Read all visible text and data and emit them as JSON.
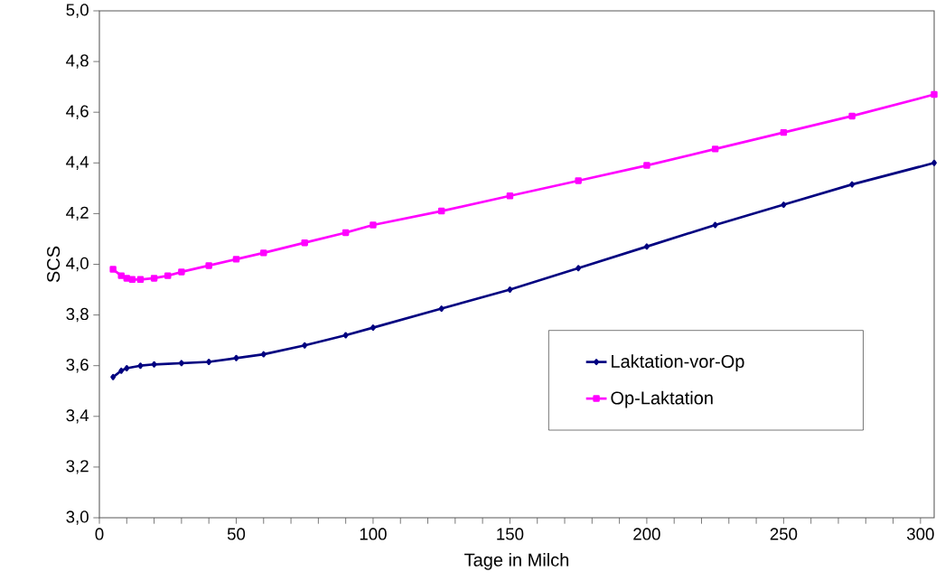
{
  "chart_data": {
    "type": "line",
    "xlabel": "Tage in Milch",
    "ylabel": "SCS",
    "xlim": [
      0,
      305
    ],
    "xticks": [
      0,
      50,
      100,
      150,
      200,
      250,
      300
    ],
    "ylim": [
      3.0,
      5.0
    ],
    "yticks": [
      {
        "value": 3.0,
        "label": "3,0"
      },
      {
        "value": 3.2,
        "label": "3,2"
      },
      {
        "value": 3.4,
        "label": "3,4"
      },
      {
        "value": 3.6,
        "label": "3,6"
      },
      {
        "value": 3.8,
        "label": "3,8"
      },
      {
        "value": 4.0,
        "label": "4,0"
      },
      {
        "value": 4.2,
        "label": "4,2"
      },
      {
        "value": 4.4,
        "label": "4,4"
      },
      {
        "value": 4.6,
        "label": "4,6"
      },
      {
        "value": 4.8,
        "label": "4,8"
      },
      {
        "value": 5.0,
        "label": "5,0"
      }
    ],
    "grid": false,
    "legend": "right",
    "line_style": "solid",
    "series": [
      {
        "name": "Laktation-vor-Op",
        "color": "#000080",
        "marker": "diamond",
        "x": [
          5,
          8,
          10,
          15,
          20,
          30,
          40,
          50,
          60,
          75,
          90,
          100,
          125,
          150,
          175,
          200,
          225,
          250,
          275,
          305
        ],
        "values": [
          3.555,
          3.58,
          3.59,
          3.6,
          3.605,
          3.61,
          3.615,
          3.63,
          3.645,
          3.68,
          3.72,
          3.75,
          3.825,
          3.9,
          3.985,
          4.07,
          4.155,
          4.235,
          4.315,
          4.4
        ]
      },
      {
        "name": "Op-Laktation",
        "color": "#ff00ff",
        "marker": "square",
        "x": [
          5,
          8,
          10,
          12,
          15,
          20,
          25,
          30,
          40,
          50,
          60,
          75,
          90,
          100,
          125,
          150,
          175,
          200,
          225,
          250,
          275,
          305
        ],
        "values": [
          3.98,
          3.955,
          3.945,
          3.94,
          3.94,
          3.945,
          3.955,
          3.97,
          3.995,
          4.02,
          4.045,
          4.085,
          4.125,
          4.155,
          4.21,
          4.27,
          4.33,
          4.39,
          4.455,
          4.52,
          4.585,
          4.67
        ]
      }
    ]
  }
}
